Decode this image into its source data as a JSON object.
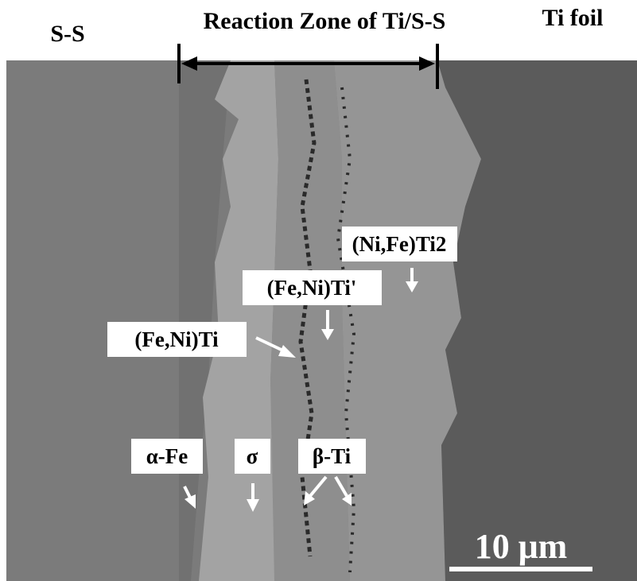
{
  "header": {
    "left_label": "S-S",
    "title": "Reaction Zone of Ti/S-S",
    "right_label": "Ti foil"
  },
  "phase_labels": [
    "(Ni,Fe)Ti2",
    "(Fe,Ni)Ti'",
    "(Fe,Ni)Ti",
    "α-Fe",
    "σ",
    "β-Ti"
  ],
  "scale_bar": "10 μm"
}
